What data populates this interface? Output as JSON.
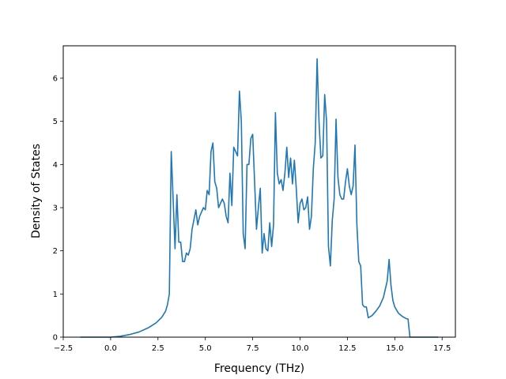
{
  "chart_data": {
    "type": "line",
    "xlabel": "Frequency (THz)",
    "ylabel": "Density of States",
    "xlim": [
      -2.5,
      18.2
    ],
    "ylim": [
      0,
      6.75
    ],
    "xticks": [
      -2.5,
      0.0,
      2.5,
      5.0,
      7.5,
      10.0,
      12.5,
      15.0,
      17.5
    ],
    "xtick_labels": [
      "−2.5",
      "0.0",
      "2.5",
      "5.0",
      "7.5",
      "10.0",
      "12.5",
      "15.0",
      "17.5"
    ],
    "yticks": [
      0,
      1,
      2,
      3,
      4,
      5,
      6
    ],
    "ytick_labels": [
      "0",
      "1",
      "2",
      "3",
      "4",
      "5",
      "6"
    ],
    "grid": false,
    "colors": {
      "series": "#1f77b4",
      "axes": "#000000",
      "background": "#ffffff"
    },
    "series": [
      {
        "x": [
          -1.6,
          -1.0,
          0.0,
          0.5,
          1.0,
          1.5,
          2.0,
          2.4,
          2.7,
          2.9,
          3.0,
          3.1,
          3.2,
          3.3,
          3.4,
          3.5,
          3.6,
          3.7,
          3.8,
          3.9,
          4.0,
          4.1,
          4.2,
          4.3,
          4.5,
          4.6,
          4.7,
          4.9,
          5.0,
          5.1,
          5.2,
          5.3,
          5.4,
          5.5,
          5.6,
          5.7,
          5.9,
          6.0,
          6.1,
          6.2,
          6.3,
          6.4,
          6.5,
          6.6,
          6.7,
          6.8,
          6.9,
          7.0,
          7.1,
          7.2,
          7.3,
          7.4,
          7.5,
          7.6,
          7.7,
          7.8,
          7.9,
          8.0,
          8.1,
          8.2,
          8.3,
          8.4,
          8.5,
          8.6,
          8.7,
          8.8,
          8.9,
          9.0,
          9.1,
          9.2,
          9.3,
          9.4,
          9.5,
          9.6,
          9.7,
          9.8,
          9.9,
          10.0,
          10.1,
          10.2,
          10.3,
          10.4,
          10.5,
          10.6,
          10.7,
          10.8,
          10.9,
          11.0,
          11.1,
          11.2,
          11.3,
          11.4,
          11.5,
          11.6,
          11.7,
          11.8,
          11.9,
          12.0,
          12.1,
          12.2,
          12.3,
          12.4,
          12.5,
          12.6,
          12.7,
          12.8,
          12.9,
          13.0,
          13.1,
          13.2,
          13.3,
          13.4,
          13.5,
          13.6,
          13.8,
          14.0,
          14.2,
          14.4,
          14.6,
          14.7,
          14.8,
          14.9,
          15.0,
          15.2,
          15.4,
          15.6,
          15.7,
          15.8,
          16.5,
          17.3
        ],
        "y": [
          0.0,
          0.0,
          0.0,
          0.02,
          0.06,
          0.12,
          0.22,
          0.33,
          0.46,
          0.6,
          0.75,
          1.0,
          4.3,
          3.2,
          2.05,
          3.3,
          2.2,
          2.2,
          1.75,
          1.75,
          1.95,
          1.9,
          2.05,
          2.5,
          2.95,
          2.6,
          2.8,
          3.0,
          2.95,
          3.4,
          3.3,
          4.3,
          4.5,
          3.6,
          3.45,
          3.0,
          3.2,
          3.1,
          2.8,
          2.65,
          3.8,
          3.05,
          4.4,
          4.3,
          4.2,
          5.7,
          5.0,
          2.4,
          2.05,
          4.0,
          4.0,
          4.6,
          4.7,
          3.6,
          2.5,
          3.0,
          3.45,
          1.95,
          2.4,
          2.05,
          2.0,
          2.65,
          2.1,
          2.6,
          5.2,
          3.8,
          3.55,
          3.65,
          3.4,
          3.8,
          4.4,
          3.7,
          4.15,
          3.55,
          4.1,
          3.45,
          2.65,
          3.1,
          3.2,
          2.95,
          3.0,
          3.25,
          2.5,
          2.8,
          3.9,
          4.5,
          6.45,
          5.0,
          4.15,
          4.2,
          5.62,
          5.0,
          2.1,
          1.65,
          2.7,
          3.2,
          5.05,
          3.7,
          3.3,
          3.2,
          3.2,
          3.6,
          3.9,
          3.5,
          3.3,
          3.5,
          4.45,
          2.6,
          1.75,
          1.65,
          0.75,
          0.7,
          0.7,
          0.45,
          0.5,
          0.6,
          0.72,
          0.92,
          1.3,
          1.8,
          1.2,
          0.85,
          0.7,
          0.55,
          0.48,
          0.43,
          0.42,
          0.0,
          0.0,
          0.0
        ]
      }
    ]
  }
}
